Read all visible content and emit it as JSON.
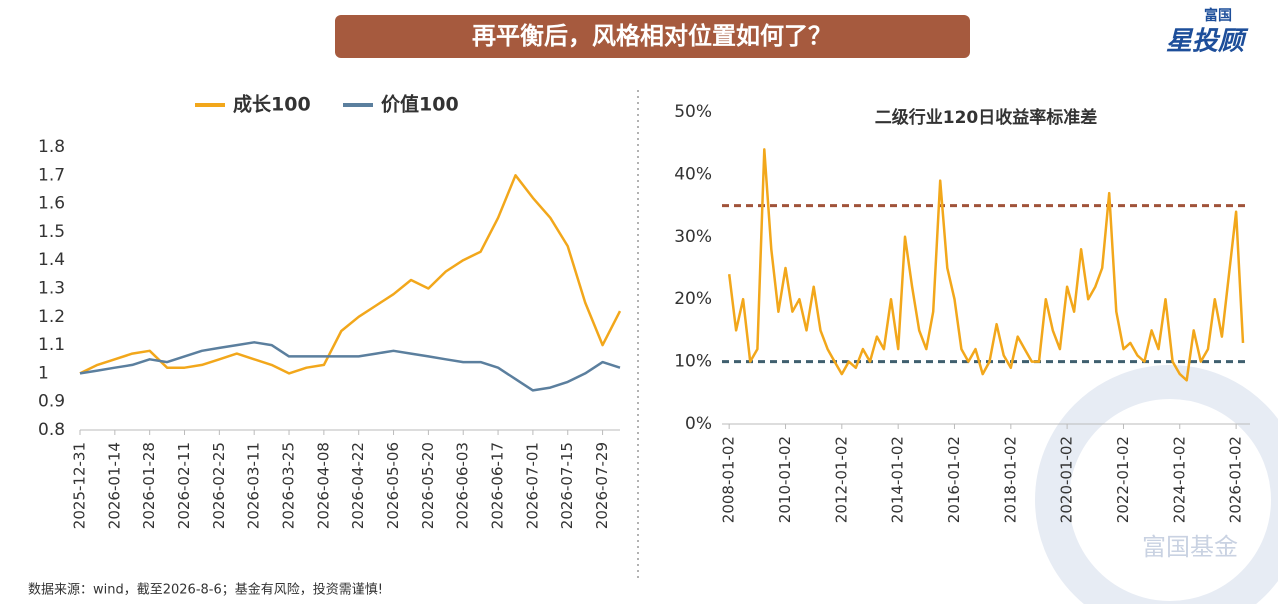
{
  "banner": "再平衡后，风格相对位置如何了？",
  "logo_top": "富国",
  "logo_bottom": "星投顾",
  "source": "数据来源：wind，截至2026-8-6；基金有风险，投资需谨慎!",
  "watermark": "富国基金",
  "chart_data": [
    {
      "type": "line",
      "x": [
        "2025-12-31",
        "2026-01-07",
        "2026-01-14",
        "2026-01-21",
        "2026-01-28",
        "2026-02-04",
        "2026-02-11",
        "2026-02-18",
        "2026-02-25",
        "2026-03-04",
        "2026-03-11",
        "2026-03-18",
        "2026-03-25",
        "2026-04-01",
        "2026-04-08",
        "2026-04-15",
        "2026-04-22",
        "2026-04-29",
        "2026-05-06",
        "2026-05-13",
        "2026-05-20",
        "2026-05-27",
        "2026-06-03",
        "2026-06-10",
        "2026-06-17",
        "2026-06-24",
        "2026-07-01",
        "2026-07-08",
        "2026-07-15",
        "2026-07-22",
        "2026-07-29",
        "2026-08-05"
      ],
      "series": [
        {
          "name": "成长100",
          "color": "#f2a71b",
          "values": [
            1.0,
            1.03,
            1.05,
            1.07,
            1.08,
            1.02,
            1.02,
            1.03,
            1.05,
            1.07,
            1.05,
            1.03,
            1.0,
            1.02,
            1.03,
            1.15,
            1.2,
            1.24,
            1.28,
            1.33,
            1.3,
            1.36,
            1.4,
            1.43,
            1.55,
            1.7,
            1.62,
            1.55,
            1.45,
            1.25,
            1.1,
            1.22
          ]
        },
        {
          "name": "价值100",
          "color": "#5b7f9e",
          "values": [
            1.0,
            1.01,
            1.02,
            1.03,
            1.05,
            1.04,
            1.06,
            1.08,
            1.09,
            1.1,
            1.11,
            1.1,
            1.06,
            1.06,
            1.06,
            1.06,
            1.06,
            1.07,
            1.08,
            1.07,
            1.06,
            1.05,
            1.04,
            1.04,
            1.02,
            0.98,
            0.94,
            0.95,
            0.97,
            1.0,
            1.04,
            1.02
          ]
        }
      ],
      "xlim": [
        "2025-12-31",
        "2026-08-05"
      ],
      "xticks": [
        "2025-12-31",
        "2026-01-14",
        "2026-01-28",
        "2026-02-11",
        "2026-02-25",
        "2026-03-11",
        "2026-03-25",
        "2026-04-08",
        "2026-04-22",
        "2026-05-06",
        "2026-05-20",
        "2026-06-03",
        "2026-06-17",
        "2026-07-01",
        "2026-07-15",
        "2026-07-29"
      ],
      "ylim": [
        0.8,
        1.8
      ],
      "yticks": [
        0.8,
        0.9,
        1,
        1.1,
        1.2,
        1.3,
        1.4,
        1.5,
        1.6,
        1.7,
        1.8
      ],
      "legend": "top"
    },
    {
      "type": "line",
      "title": "二级行业120日收益率标准差",
      "x": [
        "2008-01-02",
        "2008-04-01",
        "2008-07-01",
        "2008-10-01",
        "2009-01-02",
        "2009-04-01",
        "2009-07-01",
        "2009-10-01",
        "2010-01-02",
        "2010-04-01",
        "2010-07-01",
        "2010-10-01",
        "2011-01-02",
        "2011-04-01",
        "2011-07-01",
        "2011-10-01",
        "2012-01-02",
        "2012-04-01",
        "2012-07-01",
        "2012-10-01",
        "2013-01-02",
        "2013-04-01",
        "2013-07-01",
        "2013-10-01",
        "2014-01-02",
        "2014-04-01",
        "2014-07-01",
        "2014-10-01",
        "2015-01-02",
        "2015-04-01",
        "2015-07-01",
        "2015-10-01",
        "2016-01-02",
        "2016-04-01",
        "2016-07-01",
        "2016-10-01",
        "2017-01-02",
        "2017-04-01",
        "2017-07-01",
        "2017-10-01",
        "2018-01-02",
        "2018-04-01",
        "2018-07-01",
        "2018-10-01",
        "2019-01-02",
        "2019-04-01",
        "2019-07-01",
        "2019-10-01",
        "2020-01-02",
        "2020-04-01",
        "2020-07-01",
        "2020-10-01",
        "2021-01-02",
        "2021-04-01",
        "2021-07-01",
        "2021-10-01",
        "2022-01-02",
        "2022-04-01",
        "2022-07-01",
        "2022-10-01",
        "2023-01-02",
        "2023-04-01",
        "2023-07-01",
        "2023-10-01",
        "2024-01-02",
        "2024-04-01",
        "2024-07-01",
        "2024-10-01",
        "2025-01-02",
        "2025-04-01",
        "2025-07-01",
        "2025-10-01",
        "2026-01-02",
        "2026-04-01"
      ],
      "values": [
        24,
        15,
        20,
        10,
        12,
        44,
        28,
        18,
        25,
        18,
        20,
        15,
        22,
        15,
        12,
        10,
        8,
        10,
        9,
        12,
        10,
        14,
        12,
        20,
        12,
        30,
        22,
        15,
        12,
        18,
        39,
        25,
        20,
        12,
        10,
        12,
        8,
        10,
        16,
        11,
        9,
        14,
        12,
        10,
        10,
        20,
        15,
        12,
        22,
        18,
        28,
        20,
        22,
        25,
        37,
        18,
        12,
        13,
        11,
        10,
        15,
        12,
        20,
        10,
        8,
        7,
        15,
        10,
        12,
        20,
        14,
        24,
        34,
        13
      ],
      "color": "#f2a71b",
      "hlines": [
        {
          "value": 35,
          "color": "#a0533a"
        },
        {
          "value": 10,
          "color": "#3f5f6e"
        }
      ],
      "xlim": [
        "2007-10-01",
        "2026-07-01"
      ],
      "xticks": [
        "2008-01-02",
        "2010-01-02",
        "2012-01-02",
        "2014-01-02",
        "2016-01-02",
        "2018-01-02",
        "2020-01-02",
        "2022-01-02",
        "2024-01-02",
        "2026-01-02"
      ],
      "ylim": [
        0,
        50
      ],
      "yticks": [
        {
          "value": 0,
          "label": "0%"
        },
        {
          "value": 10,
          "label": "10%"
        },
        {
          "value": 20,
          "label": "20%"
        },
        {
          "value": 30,
          "label": "30%"
        },
        {
          "value": 40,
          "label": "40%"
        },
        {
          "value": 50,
          "label": "50%"
        }
      ]
    }
  ]
}
